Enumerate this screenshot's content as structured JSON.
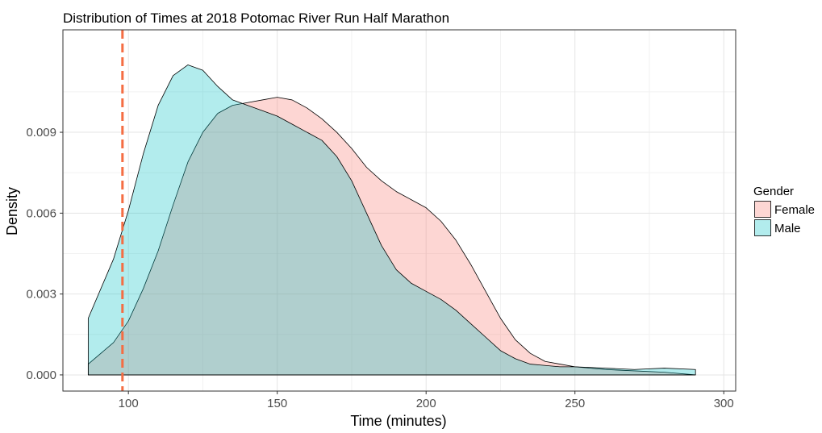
{
  "chart_data": {
    "type": "area",
    "title": "Distribution of Times at 2018 Potomac River Run Half Marathon",
    "xlabel": "Time (minutes)",
    "ylabel": "Density",
    "xlim": [
      78,
      304
    ],
    "ylim": [
      -0.0006,
      0.0128
    ],
    "x_ticks": [
      100,
      150,
      200,
      250,
      300
    ],
    "x_tick_labels": [
      "100",
      "150",
      "200",
      "250",
      "300"
    ],
    "y_ticks": [
      0.0,
      0.003,
      0.006,
      0.009
    ],
    "y_tick_labels": [
      "0.000",
      "0.003",
      "0.006",
      "0.009"
    ],
    "grid": true,
    "legend": {
      "title": "Gender",
      "position": "right"
    },
    "reference_line": {
      "x": 98,
      "style": "dashed",
      "color": "#f46d43"
    },
    "series": [
      {
        "name": "Female",
        "fill": "#f8766d",
        "x": [
          86.5,
          95,
          100,
          105,
          110,
          115,
          120,
          125,
          130,
          135,
          140,
          145,
          150,
          155,
          160,
          165,
          170,
          175,
          180,
          185,
          190,
          195,
          200,
          205,
          210,
          215,
          220,
          225,
          230,
          235,
          240,
          245,
          250,
          260,
          270,
          280,
          290.5
        ],
        "values": [
          0.0004,
          0.0012,
          0.002,
          0.0032,
          0.0046,
          0.0063,
          0.0079,
          0.009,
          0.0097,
          0.01,
          0.0101,
          0.0102,
          0.0103,
          0.0102,
          0.0099,
          0.0095,
          0.009,
          0.0084,
          0.0077,
          0.0072,
          0.0068,
          0.0065,
          0.0062,
          0.0057,
          0.005,
          0.0041,
          0.0031,
          0.0021,
          0.0013,
          0.0008,
          0.0005,
          0.0004,
          0.0003,
          0.0002,
          0.00015,
          0.0001,
          0.0
        ]
      },
      {
        "name": "Male",
        "fill": "#00bfc4",
        "x": [
          86.5,
          95,
          100,
          105,
          110,
          115,
          120,
          125,
          130,
          135,
          140,
          145,
          150,
          155,
          160,
          165,
          170,
          175,
          180,
          185,
          190,
          195,
          200,
          205,
          210,
          215,
          220,
          225,
          230,
          235,
          240,
          245,
          250,
          260,
          270,
          280,
          290.5
        ],
        "values": [
          0.0021,
          0.0043,
          0.0061,
          0.0082,
          0.01,
          0.0111,
          0.0115,
          0.0113,
          0.0107,
          0.0102,
          0.01,
          0.0098,
          0.0096,
          0.0093,
          0.009,
          0.0087,
          0.0081,
          0.0072,
          0.006,
          0.0048,
          0.0039,
          0.0034,
          0.0031,
          0.0028,
          0.0024,
          0.0019,
          0.0014,
          0.0009,
          0.0006,
          0.0004,
          0.00035,
          0.0003,
          0.0003,
          0.00025,
          0.0002,
          0.00025,
          0.0002
        ]
      }
    ]
  }
}
